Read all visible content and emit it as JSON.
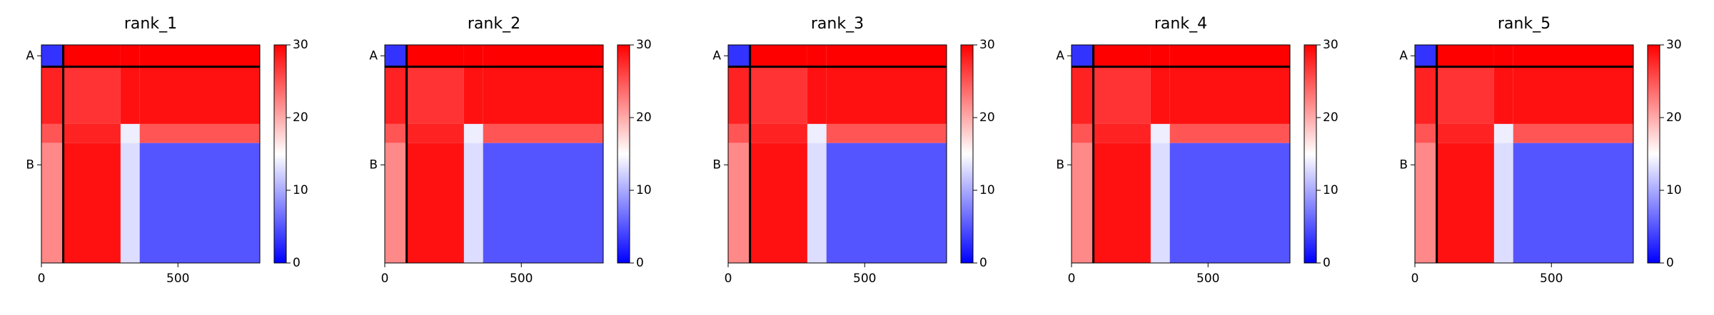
{
  "chart_data": [
    {
      "type": "heatmap",
      "title": "rank_1",
      "xlim": [
        0,
        800
      ],
      "ylim": [
        800,
        0
      ],
      "xticks": [
        0,
        500
      ],
      "yticks": [
        {
          "value": 40,
          "label": "A"
        },
        {
          "value": 440,
          "label": "B"
        }
      ],
      "bounds": [
        0,
        80,
        290,
        360,
        800
      ],
      "z": [
        [
          3,
          30,
          30,
          30
        ],
        [
          28,
          27,
          29,
          29
        ],
        [
          25,
          28,
          14,
          25
        ],
        [
          22,
          29,
          13,
          5
        ]
      ],
      "chain_breaks": [
        80
      ],
      "zlim": [
        0,
        30
      ],
      "zticks": [
        0,
        10,
        20,
        30
      ],
      "colormap": [
        "#0000ff",
        "#ffffff",
        "#ff0000"
      ]
    },
    {
      "type": "heatmap",
      "title": "rank_2",
      "xlim": [
        0,
        800
      ],
      "ylim": [
        800,
        0
      ],
      "xticks": [
        0,
        500
      ],
      "yticks": [
        {
          "value": 40,
          "label": "A"
        },
        {
          "value": 440,
          "label": "B"
        }
      ],
      "bounds": [
        0,
        80,
        290,
        360,
        800
      ],
      "z": [
        [
          3,
          30,
          30,
          30
        ],
        [
          28,
          27,
          29,
          29
        ],
        [
          25,
          28,
          14,
          25
        ],
        [
          22,
          29,
          13,
          5
        ]
      ],
      "chain_breaks": [
        80
      ],
      "zlim": [
        0,
        30
      ],
      "zticks": [
        0,
        10,
        20,
        30
      ],
      "colormap": [
        "#0000ff",
        "#ffffff",
        "#ff0000"
      ]
    },
    {
      "type": "heatmap",
      "title": "rank_3",
      "xlim": [
        0,
        800
      ],
      "ylim": [
        800,
        0
      ],
      "xticks": [
        0,
        500
      ],
      "yticks": [
        {
          "value": 40,
          "label": "A"
        },
        {
          "value": 440,
          "label": "B"
        }
      ],
      "bounds": [
        0,
        80,
        290,
        360,
        800
      ],
      "z": [
        [
          3,
          30,
          30,
          30
        ],
        [
          28,
          27,
          29,
          29
        ],
        [
          25,
          28,
          14,
          25
        ],
        [
          22,
          29,
          13,
          5
        ]
      ],
      "chain_breaks": [
        80
      ],
      "zlim": [
        0,
        30
      ],
      "zticks": [
        0,
        10,
        20,
        30
      ],
      "colormap": [
        "#0000ff",
        "#ffffff",
        "#ff0000"
      ]
    },
    {
      "type": "heatmap",
      "title": "rank_4",
      "xlim": [
        0,
        800
      ],
      "ylim": [
        800,
        0
      ],
      "xticks": [
        0,
        500
      ],
      "yticks": [
        {
          "value": 40,
          "label": "A"
        },
        {
          "value": 440,
          "label": "B"
        }
      ],
      "bounds": [
        0,
        80,
        290,
        360,
        800
      ],
      "z": [
        [
          3,
          30,
          30,
          30
        ],
        [
          28,
          27,
          29,
          29
        ],
        [
          25,
          28,
          14,
          25
        ],
        [
          22,
          29,
          13,
          5
        ]
      ],
      "chain_breaks": [
        80
      ],
      "zlim": [
        0,
        30
      ],
      "zticks": [
        0,
        10,
        20,
        30
      ],
      "colormap": [
        "#0000ff",
        "#ffffff",
        "#ff0000"
      ]
    },
    {
      "type": "heatmap",
      "title": "rank_5",
      "xlim": [
        0,
        800
      ],
      "ylim": [
        800,
        0
      ],
      "xticks": [
        0,
        500
      ],
      "yticks": [
        {
          "value": 40,
          "label": "A"
        },
        {
          "value": 440,
          "label": "B"
        }
      ],
      "bounds": [
        0,
        80,
        290,
        360,
        800
      ],
      "z": [
        [
          3,
          30,
          30,
          30
        ],
        [
          28,
          27,
          29,
          29
        ],
        [
          25,
          28,
          14,
          25
        ],
        [
          22,
          29,
          13,
          5
        ]
      ],
      "chain_breaks": [
        80
      ],
      "zlim": [
        0,
        30
      ],
      "zticks": [
        0,
        10,
        20,
        30
      ],
      "colormap": [
        "#0000ff",
        "#ffffff",
        "#ff0000"
      ]
    }
  ]
}
